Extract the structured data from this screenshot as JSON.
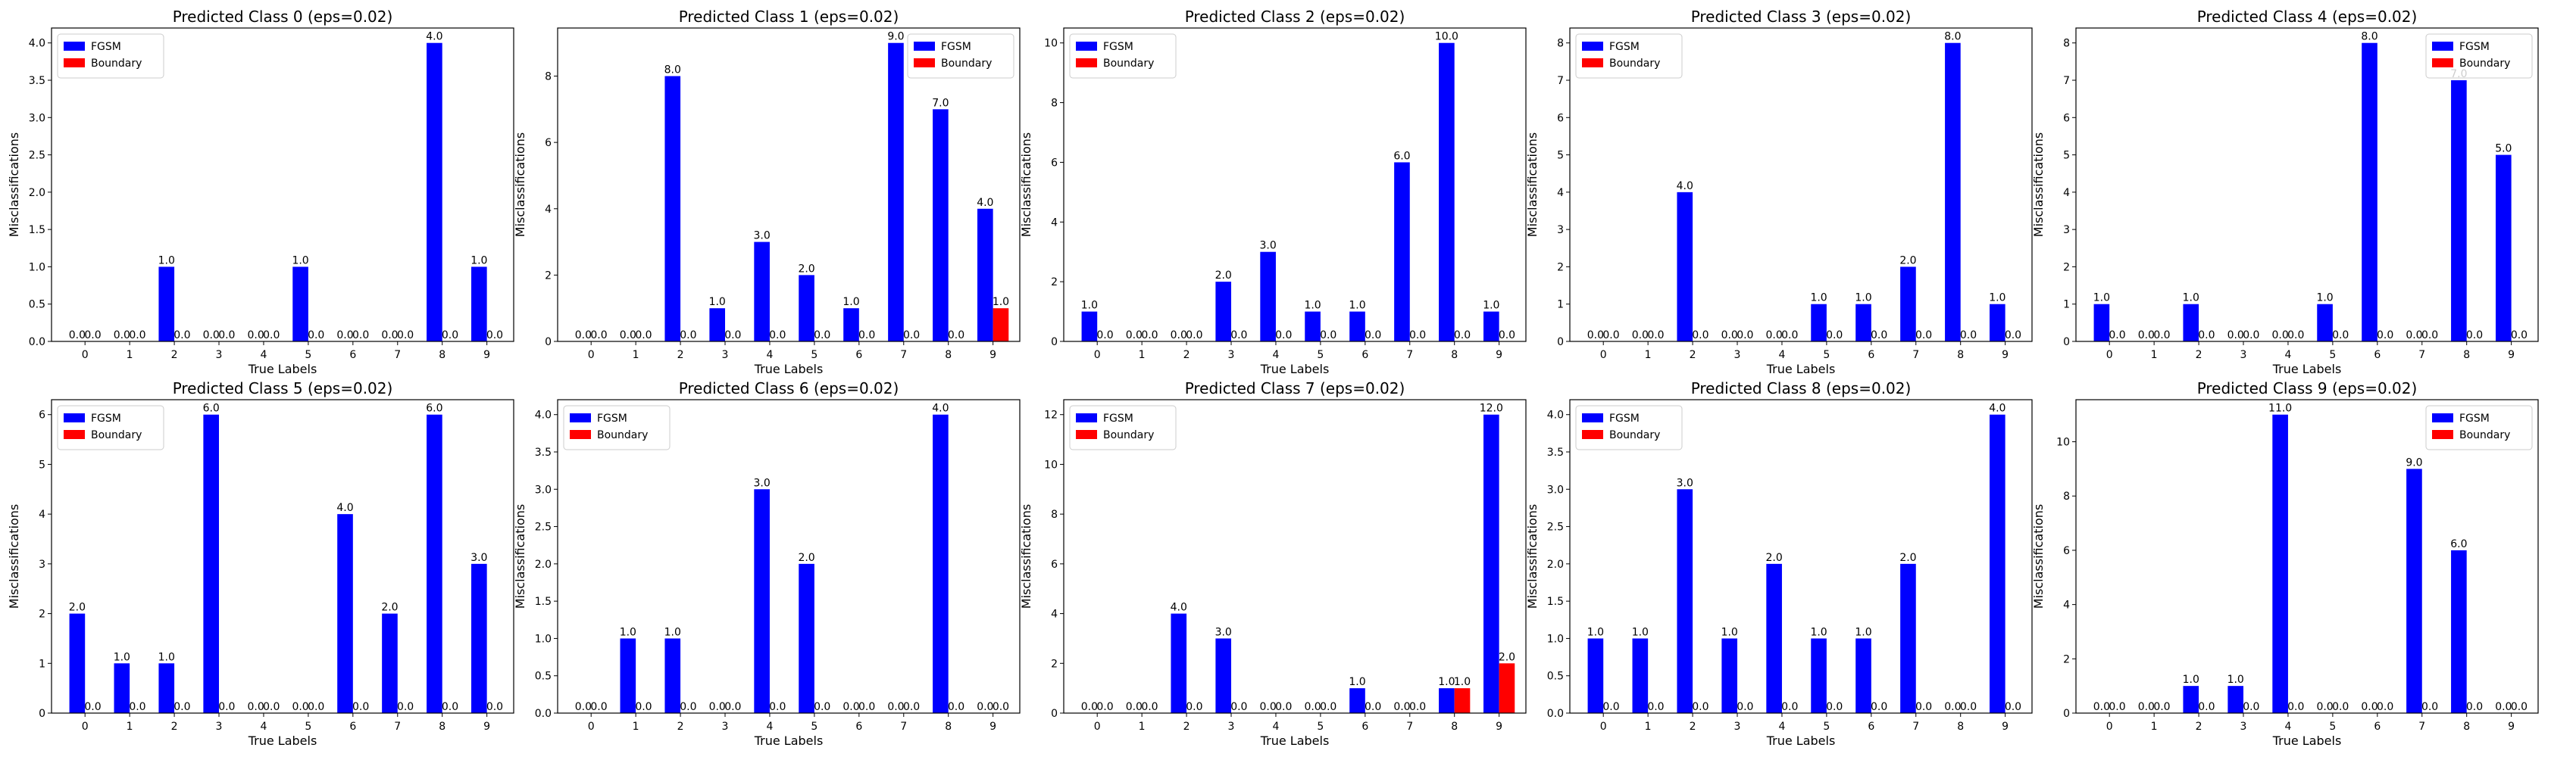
{
  "colors": {
    "fgsm": "#0000ff",
    "boundary": "#ff0000"
  },
  "chart_data": [
    {
      "type": "bar",
      "title": "Predicted Class 0 (eps=0.02)",
      "xlabel": "True Labels",
      "ylabel": "Misclassifications",
      "categories": [
        "0",
        "1",
        "2",
        "3",
        "4",
        "5",
        "6",
        "7",
        "8",
        "9"
      ],
      "ylim": [
        0,
        4.2
      ],
      "yticks": [
        0.0,
        0.5,
        1.0,
        1.5,
        2.0,
        2.5,
        3.0,
        3.5,
        4.0
      ],
      "ytick_labels": [
        "0.0",
        "0.5",
        "1.0",
        "1.5",
        "2.0",
        "2.5",
        "3.0",
        "3.5",
        "4.0"
      ],
      "legend": "top-left",
      "series": [
        {
          "name": "FGSM",
          "values": [
            0,
            0,
            1,
            0,
            0,
            1,
            0,
            0,
            4,
            1
          ]
        },
        {
          "name": "Boundary",
          "values": [
            0,
            0,
            0,
            0,
            0,
            0,
            0,
            0,
            0,
            0
          ]
        }
      ]
    },
    {
      "type": "bar",
      "title": "Predicted Class 1 (eps=0.02)",
      "xlabel": "True Labels",
      "ylabel": "Misclassifications",
      "categories": [
        "0",
        "1",
        "2",
        "3",
        "4",
        "5",
        "6",
        "7",
        "8",
        "9"
      ],
      "ylim": [
        0,
        9.45
      ],
      "yticks": [
        0,
        2,
        4,
        6,
        8
      ],
      "ytick_labels": [
        "0",
        "2",
        "4",
        "6",
        "8"
      ],
      "legend": "top-right",
      "series": [
        {
          "name": "FGSM",
          "values": [
            0,
            0,
            8,
            1,
            3,
            2,
            1,
            9,
            7,
            4
          ]
        },
        {
          "name": "Boundary",
          "values": [
            0,
            0,
            0,
            0,
            0,
            0,
            0,
            0,
            0,
            1
          ]
        }
      ]
    },
    {
      "type": "bar",
      "title": "Predicted Class 2 (eps=0.02)",
      "xlabel": "True Labels",
      "ylabel": "Misclassifications",
      "categories": [
        "0",
        "1",
        "2",
        "3",
        "4",
        "5",
        "6",
        "7",
        "8",
        "9"
      ],
      "ylim": [
        0,
        10.5
      ],
      "yticks": [
        0,
        2,
        4,
        6,
        8,
        10
      ],
      "ytick_labels": [
        "0",
        "2",
        "4",
        "6",
        "8",
        "10"
      ],
      "legend": "top-left",
      "series": [
        {
          "name": "FGSM",
          "values": [
            1,
            0,
            0,
            2,
            3,
            1,
            1,
            6,
            10,
            1
          ]
        },
        {
          "name": "Boundary",
          "values": [
            0,
            0,
            0,
            0,
            0,
            0,
            0,
            0,
            0,
            0
          ]
        }
      ]
    },
    {
      "type": "bar",
      "title": "Predicted Class 3 (eps=0.02)",
      "xlabel": "True Labels",
      "ylabel": "Misclassifications",
      "categories": [
        "0",
        "1",
        "2",
        "3",
        "4",
        "5",
        "6",
        "7",
        "8",
        "9"
      ],
      "ylim": [
        0,
        8.4
      ],
      "yticks": [
        0,
        1,
        2,
        3,
        4,
        5,
        6,
        7,
        8
      ],
      "ytick_labels": [
        "0",
        "1",
        "2",
        "3",
        "4",
        "5",
        "6",
        "7",
        "8"
      ],
      "legend": "top-left",
      "series": [
        {
          "name": "FGSM",
          "values": [
            0,
            0,
            4,
            0,
            0,
            1,
            1,
            2,
            8,
            1
          ]
        },
        {
          "name": "Boundary",
          "values": [
            0,
            0,
            0,
            0,
            0,
            0,
            0,
            0,
            0,
            0
          ]
        }
      ]
    },
    {
      "type": "bar",
      "title": "Predicted Class 4 (eps=0.02)",
      "xlabel": "True Labels",
      "ylabel": "Misclassifications",
      "categories": [
        "0",
        "1",
        "2",
        "3",
        "4",
        "5",
        "6",
        "7",
        "8",
        "9"
      ],
      "ylim": [
        0,
        8.4
      ],
      "yticks": [
        0,
        1,
        2,
        3,
        4,
        5,
        6,
        7,
        8
      ],
      "ytick_labels": [
        "0",
        "1",
        "2",
        "3",
        "4",
        "5",
        "6",
        "7",
        "8"
      ],
      "legend": "top-right",
      "series": [
        {
          "name": "FGSM",
          "values": [
            1,
            0,
            1,
            0,
            0,
            1,
            8,
            0,
            7,
            5
          ]
        },
        {
          "name": "Boundary",
          "values": [
            0,
            0,
            0,
            0,
            0,
            0,
            0,
            0,
            0,
            0
          ]
        }
      ]
    },
    {
      "type": "bar",
      "title": "Predicted Class 5 (eps=0.02)",
      "xlabel": "True Labels",
      "ylabel": "Misclassifications",
      "categories": [
        "0",
        "1",
        "2",
        "3",
        "4",
        "5",
        "6",
        "7",
        "8",
        "9"
      ],
      "ylim": [
        0,
        6.3
      ],
      "yticks": [
        0,
        1,
        2,
        3,
        4,
        5,
        6
      ],
      "ytick_labels": [
        "0",
        "1",
        "2",
        "3",
        "4",
        "5",
        "6"
      ],
      "legend": "top-left",
      "series": [
        {
          "name": "FGSM",
          "values": [
            2,
            1,
            1,
            6,
            0,
            0,
            4,
            2,
            6,
            3
          ]
        },
        {
          "name": "Boundary",
          "values": [
            0,
            0,
            0,
            0,
            0,
            0,
            0,
            0,
            0,
            0
          ]
        }
      ]
    },
    {
      "type": "bar",
      "title": "Predicted Class 6 (eps=0.02)",
      "xlabel": "True Labels",
      "ylabel": "Misclassifications",
      "categories": [
        "0",
        "1",
        "2",
        "3",
        "4",
        "5",
        "6",
        "7",
        "8",
        "9"
      ],
      "ylim": [
        0,
        4.2
      ],
      "yticks": [
        0.0,
        0.5,
        1.0,
        1.5,
        2.0,
        2.5,
        3.0,
        3.5,
        4.0
      ],
      "ytick_labels": [
        "0.0",
        "0.5",
        "1.0",
        "1.5",
        "2.0",
        "2.5",
        "3.0",
        "3.5",
        "4.0"
      ],
      "legend": "top-left",
      "series": [
        {
          "name": "FGSM",
          "values": [
            0,
            1,
            1,
            0,
            3,
            2,
            0,
            0,
            4,
            0
          ]
        },
        {
          "name": "Boundary",
          "values": [
            0,
            0,
            0,
            0,
            0,
            0,
            0,
            0,
            0,
            0
          ]
        }
      ]
    },
    {
      "type": "bar",
      "title": "Predicted Class 7 (eps=0.02)",
      "xlabel": "True Labels",
      "ylabel": "Misclassifications",
      "categories": [
        "0",
        "1",
        "2",
        "3",
        "4",
        "5",
        "6",
        "7",
        "8",
        "9"
      ],
      "ylim": [
        0,
        12.6
      ],
      "yticks": [
        0,
        2,
        4,
        6,
        8,
        10,
        12
      ],
      "ytick_labels": [
        "0",
        "2",
        "4",
        "6",
        "8",
        "10",
        "12"
      ],
      "legend": "top-left",
      "series": [
        {
          "name": "FGSM",
          "values": [
            0,
            0,
            4,
            3,
            0,
            0,
            1,
            0,
            1,
            12
          ]
        },
        {
          "name": "Boundary",
          "values": [
            0,
            0,
            0,
            0,
            0,
            0,
            0,
            0,
            1,
            2
          ]
        }
      ]
    },
    {
      "type": "bar",
      "title": "Predicted Class 8 (eps=0.02)",
      "xlabel": "True Labels",
      "ylabel": "Misclassifications",
      "categories": [
        "0",
        "1",
        "2",
        "3",
        "4",
        "5",
        "6",
        "7",
        "8",
        "9"
      ],
      "ylim": [
        0,
        4.2
      ],
      "yticks": [
        0.0,
        0.5,
        1.0,
        1.5,
        2.0,
        2.5,
        3.0,
        3.5,
        4.0
      ],
      "ytick_labels": [
        "0.0",
        "0.5",
        "1.0",
        "1.5",
        "2.0",
        "2.5",
        "3.0",
        "3.5",
        "4.0"
      ],
      "legend": "top-left",
      "series": [
        {
          "name": "FGSM",
          "values": [
            1,
            1,
            3,
            1,
            2,
            1,
            1,
            2,
            0,
            4
          ]
        },
        {
          "name": "Boundary",
          "values": [
            0,
            0,
            0,
            0,
            0,
            0,
            0,
            0,
            0,
            0
          ]
        }
      ]
    },
    {
      "type": "bar",
      "title": "Predicted Class 9 (eps=0.02)",
      "xlabel": "True Labels",
      "ylabel": "Misclassifications",
      "categories": [
        "0",
        "1",
        "2",
        "3",
        "4",
        "5",
        "6",
        "7",
        "8",
        "9"
      ],
      "ylim": [
        0,
        11.55
      ],
      "yticks": [
        0,
        2,
        4,
        6,
        8,
        10
      ],
      "ytick_labels": [
        "0",
        "2",
        "4",
        "6",
        "8",
        "10"
      ],
      "legend": "top-right",
      "series": [
        {
          "name": "FGSM",
          "values": [
            0,
            0,
            1,
            1,
            11,
            0,
            0,
            9,
            6,
            0
          ]
        },
        {
          "name": "Boundary",
          "values": [
            0,
            0,
            0,
            0,
            0,
            0,
            0,
            0,
            0,
            0
          ]
        }
      ]
    }
  ]
}
